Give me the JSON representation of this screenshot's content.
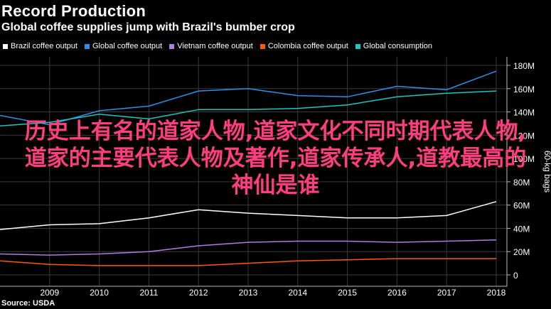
{
  "header": {
    "title": "Record Production",
    "subtitle": "Global coffee supplies jump with Brazil's bumber crop"
  },
  "source": "Source: USDA",
  "overlay_text": "历史上有名的道家人物,道家文化不同时期代表人物,道家的主要代表人物及著作,道家传承人,道教最高的神仙是谁",
  "colors": {
    "background": "#000000",
    "grid": "#3a3a3a",
    "overlay": "#ff3d7f"
  },
  "chart_data": {
    "type": "line",
    "title": "Record Production",
    "subtitle": "Global coffee supplies jump with Brazil's bumber crop",
    "ylabel": "60-kg bags",
    "xlabel": "",
    "x": [
      2008,
      2009,
      2010,
      2011,
      2012,
      2013,
      2014,
      2015,
      2016,
      2017,
      2018
    ],
    "xlim": [
      2008,
      2018
    ],
    "ylim": [
      0,
      180
    ],
    "x_ticks": [
      "2009",
      "2010",
      "2011",
      "2012",
      "2013",
      "2014",
      "2015",
      "2016",
      "2017",
      "2018"
    ],
    "y_ticks": [
      {
        "value": 0,
        "label": "0"
      },
      {
        "value": 20,
        "label": "20M"
      },
      {
        "value": 40,
        "label": "40M"
      },
      {
        "value": 60,
        "label": "60M"
      },
      {
        "value": 80,
        "label": "80M"
      },
      {
        "value": 100,
        "label": "100M"
      },
      {
        "value": 120,
        "label": "120M"
      },
      {
        "value": 140,
        "label": "140M"
      },
      {
        "value": 160,
        "label": "160M"
      },
      {
        "value": 180,
        "label": "180M"
      }
    ],
    "grid": true,
    "legend_position": "top",
    "series": [
      {
        "name": "Brazil coffee output",
        "color": "#ffffff",
        "values": [
          39,
          43,
          44,
          49,
          56,
          53,
          51,
          49,
          49,
          51,
          63
        ]
      },
      {
        "name": "Global coffee output",
        "color": "#2f8fe6",
        "values": [
          137,
          129,
          141,
          145,
          158,
          160,
          154,
          153,
          162,
          159,
          175
        ]
      },
      {
        "name": "Vietnam coffee output",
        "color": "#b07ce0",
        "values": [
          18,
          17,
          18,
          20,
          25,
          28,
          29,
          29,
          28,
          29,
          30
        ]
      },
      {
        "name": "Colombia coffee output",
        "color": "#ff5a00",
        "values": [
          12,
          9,
          8,
          8,
          8,
          10,
          12,
          13,
          14,
          14,
          14
        ]
      },
      {
        "name": "Global consumption",
        "color": "#1bc6c4",
        "values": [
          128,
          131,
          138,
          134,
          142,
          142,
          143,
          146,
          153,
          156,
          158
        ]
      }
    ]
  }
}
